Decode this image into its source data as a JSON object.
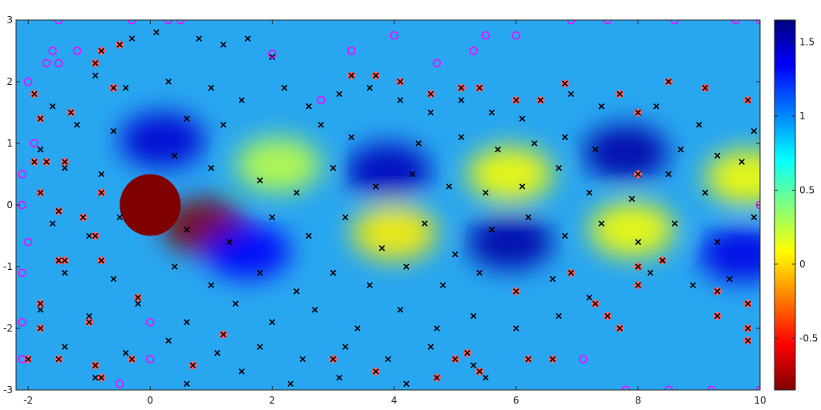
{
  "chart_data": {
    "type": "heatmap",
    "title": "",
    "xlabel": "",
    "ylabel": "",
    "xlim": [
      -2.2,
      10
    ],
    "ylim": [
      -3,
      3
    ],
    "x_ticks": [
      "-2",
      "0",
      "2",
      "4",
      "6",
      "8",
      "10"
    ],
    "y_ticks": [
      "-3",
      "-2",
      "-1",
      "0",
      "1",
      "2",
      "3"
    ],
    "colorbar": {
      "range": [
        -0.85,
        1.65
      ],
      "ticks": [
        "-0.5",
        "0",
        "0.5",
        "1",
        "1.5"
      ],
      "colormap": "jet"
    },
    "obstacle": {
      "center": [
        0,
        0
      ],
      "radius": 0.5,
      "color": "#7f0000"
    },
    "field_features": [
      {
        "x": 0.9,
        "y": -0.35,
        "value": -0.85
      },
      {
        "x": 0.2,
        "y": 1.05,
        "value": 1.45
      },
      {
        "x": 1.6,
        "y": -0.75,
        "value": 1.35
      },
      {
        "x": 2.1,
        "y": 0.65,
        "value": 0.25
      },
      {
        "x": 3.9,
        "y": 0.55,
        "value": 1.5
      },
      {
        "x": 4.0,
        "y": -0.45,
        "value": 0.05
      },
      {
        "x": 5.9,
        "y": 0.5,
        "value": 0.1
      },
      {
        "x": 5.9,
        "y": -0.6,
        "value": 1.55
      },
      {
        "x": 7.8,
        "y": 0.85,
        "value": 1.55
      },
      {
        "x": 7.9,
        "y": -0.4,
        "value": 0.1
      },
      {
        "x": 9.8,
        "y": 0.45,
        "value": 0.1
      },
      {
        "x": 9.7,
        "y": -0.8,
        "value": 1.4
      }
    ],
    "series": [
      {
        "marker": "black-x",
        "points": [
          [
            -0.3,
            2.7
          ],
          [
            0.1,
            2.8
          ],
          [
            0.8,
            2.7
          ],
          [
            1.2,
            2.6
          ],
          [
            1.6,
            2.7
          ],
          [
            2.0,
            2.4
          ],
          [
            -0.9,
            2.1
          ],
          [
            -0.4,
            1.9
          ],
          [
            0.3,
            2.0
          ],
          [
            1.0,
            1.9
          ],
          [
            1.5,
            1.7
          ],
          [
            2.2,
            1.9
          ],
          [
            2.6,
            1.6
          ],
          [
            3.1,
            1.8
          ],
          [
            3.6,
            1.9
          ],
          [
            4.1,
            1.7
          ],
          [
            4.6,
            1.5
          ],
          [
            5.1,
            1.7
          ],
          [
            5.6,
            1.5
          ],
          [
            6.1,
            1.4
          ],
          [
            6.9,
            1.8
          ],
          [
            7.4,
            1.6
          ],
          [
            8.3,
            1.6
          ],
          [
            9.0,
            1.3
          ],
          [
            -1.6,
            1.6
          ],
          [
            -1.2,
            1.3
          ],
          [
            -0.6,
            1.2
          ],
          [
            0.6,
            1.4
          ],
          [
            1.2,
            1.3
          ],
          [
            2.8,
            1.3
          ],
          [
            3.3,
            1.1
          ],
          [
            4.4,
            1.0
          ],
          [
            5.1,
            1.1
          ],
          [
            5.7,
            0.9
          ],
          [
            6.3,
            1.0
          ],
          [
            6.8,
            1.1
          ],
          [
            7.3,
            0.9
          ],
          [
            8.7,
            0.9
          ],
          [
            9.3,
            0.8
          ],
          [
            9.9,
            1.2
          ],
          [
            -1.8,
            0.9
          ],
          [
            -1.4,
            0.6
          ],
          [
            -0.8,
            0.5
          ],
          [
            0.4,
            0.8
          ],
          [
            1.0,
            0.6
          ],
          [
            1.8,
            0.4
          ],
          [
            2.4,
            0.2
          ],
          [
            3.0,
            0.6
          ],
          [
            3.7,
            0.3
          ],
          [
            4.3,
            0.5
          ],
          [
            4.9,
            0.3
          ],
          [
            5.5,
            0.2
          ],
          [
            6.1,
            0.3
          ],
          [
            6.7,
            0.6
          ],
          [
            7.2,
            0.2
          ],
          [
            7.9,
            0.1
          ],
          [
            8.5,
            0.5
          ],
          [
            9.1,
            0.2
          ],
          [
            9.7,
            0.7
          ],
          [
            -1.6,
            -0.3
          ],
          [
            -1.0,
            -0.5
          ],
          [
            -0.5,
            -0.2
          ],
          [
            0.6,
            -0.4
          ],
          [
            1.3,
            -0.6
          ],
          [
            2.0,
            -0.2
          ],
          [
            2.6,
            -0.5
          ],
          [
            3.2,
            -0.2
          ],
          [
            3.8,
            -0.7
          ],
          [
            4.5,
            -0.3
          ],
          [
            5.0,
            -0.8
          ],
          [
            5.6,
            -0.4
          ],
          [
            6.2,
            -0.2
          ],
          [
            6.8,
            -0.5
          ],
          [
            7.4,
            -0.3
          ],
          [
            8.0,
            -0.6
          ],
          [
            8.6,
            -0.3
          ],
          [
            9.3,
            -0.6
          ],
          [
            9.9,
            -0.2
          ],
          [
            -1.4,
            -1.1
          ],
          [
            -0.6,
            -1.2
          ],
          [
            0.4,
            -1.0
          ],
          [
            1.0,
            -1.3
          ],
          [
            1.8,
            -1.1
          ],
          [
            2.4,
            -1.4
          ],
          [
            3.0,
            -1.1
          ],
          [
            3.6,
            -1.3
          ],
          [
            4.2,
            -1.0
          ],
          [
            4.8,
            -1.3
          ],
          [
            5.4,
            -1.1
          ],
          [
            6.0,
            -1.4
          ],
          [
            6.6,
            -1.2
          ],
          [
            7.2,
            -1.5
          ],
          [
            8.2,
            -1.1
          ],
          [
            8.9,
            -1.3
          ],
          [
            9.5,
            -1.2
          ],
          [
            -1.8,
            -1.7
          ],
          [
            -1.0,
            -1.8
          ],
          [
            -0.2,
            -1.6
          ],
          [
            0.6,
            -1.9
          ],
          [
            1.4,
            -1.6
          ],
          [
            2.0,
            -1.9
          ],
          [
            2.7,
            -1.7
          ],
          [
            3.4,
            -2.0
          ],
          [
            4.1,
            -1.7
          ],
          [
            4.7,
            -2.0
          ],
          [
            5.3,
            -1.8
          ],
          [
            6.0,
            -2.0
          ],
          [
            6.7,
            -1.8
          ],
          [
            -1.4,
            -2.3
          ],
          [
            -0.4,
            -2.4
          ],
          [
            0.3,
            -2.2
          ],
          [
            1.1,
            -2.4
          ],
          [
            1.8,
            -2.3
          ],
          [
            2.5,
            -2.5
          ],
          [
            3.2,
            -2.3
          ],
          [
            3.9,
            -2.5
          ],
          [
            4.6,
            -2.3
          ],
          [
            5.3,
            -2.6
          ],
          [
            -0.9,
            -2.8
          ],
          [
            0.6,
            -2.9
          ],
          [
            1.5,
            -2.7
          ],
          [
            2.3,
            -2.9
          ],
          [
            3.1,
            -2.8
          ],
          [
            4.2,
            -2.9
          ],
          [
            5.5,
            -2.8
          ]
        ]
      },
      {
        "marker": "red-filled-circle-x",
        "points": [
          [
            -1.9,
            1.8
          ],
          [
            -1.8,
            1.4
          ],
          [
            -1.3,
            1.5
          ],
          [
            -0.9,
            2.3
          ],
          [
            -0.8,
            2.5
          ],
          [
            -0.5,
            2.6
          ],
          [
            -0.6,
            1.9
          ],
          [
            -1.9,
            0.7
          ],
          [
            -1.7,
            0.7
          ],
          [
            -1.4,
            0.7
          ],
          [
            -0.8,
            0.2
          ],
          [
            -1.8,
            0.2
          ],
          [
            -1.5,
            -0.1
          ],
          [
            -1.1,
            -0.2
          ],
          [
            -0.9,
            -0.5
          ],
          [
            -1.5,
            -0.9
          ],
          [
            -1.4,
            -0.9
          ],
          [
            -0.8,
            -0.9
          ],
          [
            -0.2,
            -1.5
          ],
          [
            -1.8,
            -1.6
          ],
          [
            -1.8,
            -2.0
          ],
          [
            -1.0,
            -1.9
          ],
          [
            -1.5,
            -2.5
          ],
          [
            -0.9,
            -2.6
          ],
          [
            -0.8,
            -2.8
          ],
          [
            -0.3,
            -2.5
          ],
          [
            -2.0,
            -2.5
          ],
          [
            0.7,
            -2.6
          ],
          [
            1.2,
            -2.1
          ],
          [
            3.0,
            -2.5
          ],
          [
            3.7,
            -2.7
          ],
          [
            3.3,
            2.1
          ],
          [
            3.7,
            2.1
          ],
          [
            4.1,
            2.0
          ],
          [
            4.6,
            1.8
          ],
          [
            5.1,
            1.9
          ],
          [
            5.4,
            1.9
          ],
          [
            6.0,
            1.7
          ],
          [
            6.4,
            1.7
          ],
          [
            6.8,
            1.97
          ],
          [
            7.7,
            1.8
          ],
          [
            8.0,
            1.5
          ],
          [
            8.5,
            2.0
          ],
          [
            9.1,
            1.9
          ],
          [
            9.8,
            1.7
          ],
          [
            8.0,
            0.5
          ],
          [
            6.9,
            -1.1
          ],
          [
            6.0,
            -1.4
          ],
          [
            7.3,
            -1.6
          ],
          [
            7.5,
            -1.8
          ],
          [
            8.0,
            -1.3
          ],
          [
            8.0,
            -1.0
          ],
          [
            8.4,
            -0.9
          ],
          [
            9.3,
            -1.4
          ],
          [
            9.3,
            -1.8
          ],
          [
            9.8,
            -1.6
          ],
          [
            9.8,
            -2.0
          ],
          [
            9.8,
            -2.2
          ],
          [
            7.7,
            -2.0
          ],
          [
            6.6,
            -2.5
          ],
          [
            6.2,
            -2.5
          ],
          [
            5.4,
            -2.7
          ],
          [
            5.2,
            -2.4
          ],
          [
            5.0,
            -2.5
          ],
          [
            4.7,
            -2.8
          ]
        ]
      },
      {
        "marker": "magenta-open-circle",
        "points": [
          [
            -1.5,
            3.0
          ],
          [
            -0.3,
            3.0
          ],
          [
            0.3,
            3.0
          ],
          [
            0.5,
            3.0
          ],
          [
            -1.6,
            2.5
          ],
          [
            -1.7,
            2.3
          ],
          [
            -1.5,
            2.3
          ],
          [
            -1.2,
            2.5
          ],
          [
            2.0,
            2.45
          ],
          [
            3.3,
            2.5
          ],
          [
            4.0,
            2.75
          ],
          [
            5.3,
            2.5
          ],
          [
            5.5,
            2.75
          ],
          [
            6.0,
            2.75
          ],
          [
            6.9,
            3.0
          ],
          [
            7.5,
            3.0
          ],
          [
            8.6,
            3.0
          ],
          [
            9.6,
            3.0
          ],
          [
            10.0,
            3.0
          ],
          [
            -2.0,
            2.0
          ],
          [
            -1.9,
            1.0
          ],
          [
            -2.1,
            0.5
          ],
          [
            -2.1,
            0.0
          ],
          [
            -2.0,
            -0.6
          ],
          [
            -2.1,
            -1.1
          ],
          [
            -2.1,
            -1.9
          ],
          [
            -2.1,
            -2.5
          ],
          [
            0.0,
            -1.9
          ],
          [
            0.0,
            -2.5
          ],
          [
            -0.5,
            -2.9
          ],
          [
            7.1,
            -2.5
          ],
          [
            7.8,
            -3.0
          ],
          [
            8.5,
            -3.0
          ],
          [
            9.2,
            -3.0
          ],
          [
            10.0,
            -3.0
          ],
          [
            10.0,
            0.0
          ],
          [
            4.7,
            2.3
          ],
          [
            2.8,
            1.7
          ]
        ]
      }
    ]
  }
}
